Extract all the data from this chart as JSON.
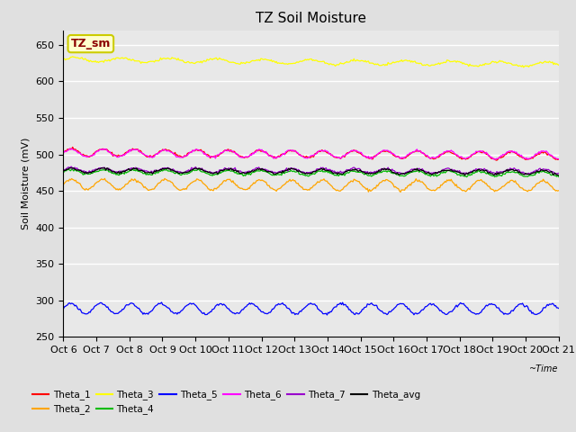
{
  "title": "TZ Soil Moisture",
  "ylabel": "Soil Moisture (mV)",
  "ylim": [
    250,
    670
  ],
  "yticks": [
    250,
    300,
    350,
    400,
    450,
    500,
    550,
    600,
    650
  ],
  "x_labels": [
    "Oct 6",
    "Oct 7",
    "Oct 8",
    "Oct 9",
    "Oct 10",
    "Oct 11",
    "Oct 12",
    "Oct 13",
    "Oct 14",
    "Oct 15",
    "Oct 16",
    "Oct 17",
    "Oct 18",
    "Oct 19",
    "Oct 20",
    "Oct 21"
  ],
  "n_points": 480,
  "series": {
    "Theta_1": {
      "color": "#FF0000",
      "base": 503,
      "amp": 5,
      "trend": -0.35,
      "freq": 1.05
    },
    "Theta_2": {
      "color": "#FFA500",
      "base": 459,
      "amp": 7,
      "trend": -0.15,
      "freq": 1.05
    },
    "Theta_3": {
      "color": "#FFFF00",
      "base": 630,
      "amp": 3,
      "trend": -0.45,
      "freq": 0.7
    },
    "Theta_4": {
      "color": "#00BB00",
      "base": 476,
      "amp": 3,
      "trend": -0.2,
      "freq": 1.05
    },
    "Theta_5": {
      "color": "#0000FF",
      "base": 289,
      "amp": 7,
      "trend": -0.05,
      "freq": 1.1
    },
    "Theta_6": {
      "color": "#FF00FF",
      "base": 502,
      "amp": 5,
      "trend": -0.2,
      "freq": 1.05
    },
    "Theta_7": {
      "color": "#9900CC",
      "base": 479,
      "amp": 3,
      "trend": -0.15,
      "freq": 1.05
    },
    "Theta_avg": {
      "color": "#000000",
      "base": 478,
      "amp": 3,
      "trend": -0.18,
      "freq": 1.05
    }
  },
  "legend_order": [
    "Theta_1",
    "Theta_2",
    "Theta_3",
    "Theta_4",
    "Theta_5",
    "Theta_6",
    "Theta_7",
    "Theta_avg"
  ],
  "annotation_text": "TZ_sm",
  "annotation_color": "#8B0000",
  "annotation_bg": "#FFFFCC",
  "annotation_edge": "#CCCC00",
  "background_color": "#E0E0E0",
  "plot_bg": "#E8E8E8",
  "grid_color": "#FFFFFF",
  "title_fontsize": 11,
  "axis_fontsize": 8,
  "tick_fontsize": 8,
  "legend_fontsize": 7.5
}
